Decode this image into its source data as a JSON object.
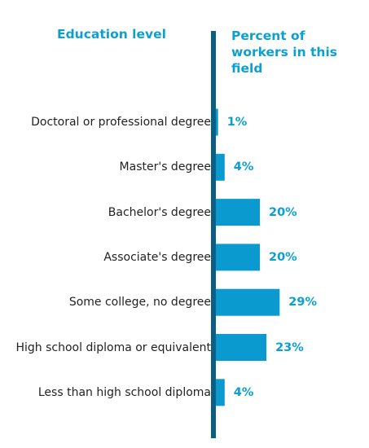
{
  "header": {
    "left_title": "Education level",
    "right_title": "Percent of workers in this field"
  },
  "colors": {
    "bar": "#0b9ad0",
    "axis": "#0b5f85",
    "header_text": "#0e9fd2",
    "value_text": "#0e9fd2",
    "label_text": "#222222"
  },
  "chart_data": {
    "type": "bar",
    "orientation": "horizontal",
    "title": "",
    "xlabel": "Percent of workers in this field",
    "ylabel": "Education level",
    "categories": [
      "Doctoral or professional degree",
      "Master's degree",
      "Bachelor's degree",
      "Associate's degree",
      "Some college, no degree",
      "High school diploma or equivalent",
      "Less than high school diploma"
    ],
    "values": [
      1,
      4,
      20,
      20,
      29,
      23,
      4
    ],
    "value_labels": [
      "1%",
      "4%",
      "20%",
      "20%",
      "29%",
      "23%",
      "4%"
    ],
    "xlim": [
      0,
      100
    ],
    "grid": false,
    "legend": "none"
  }
}
